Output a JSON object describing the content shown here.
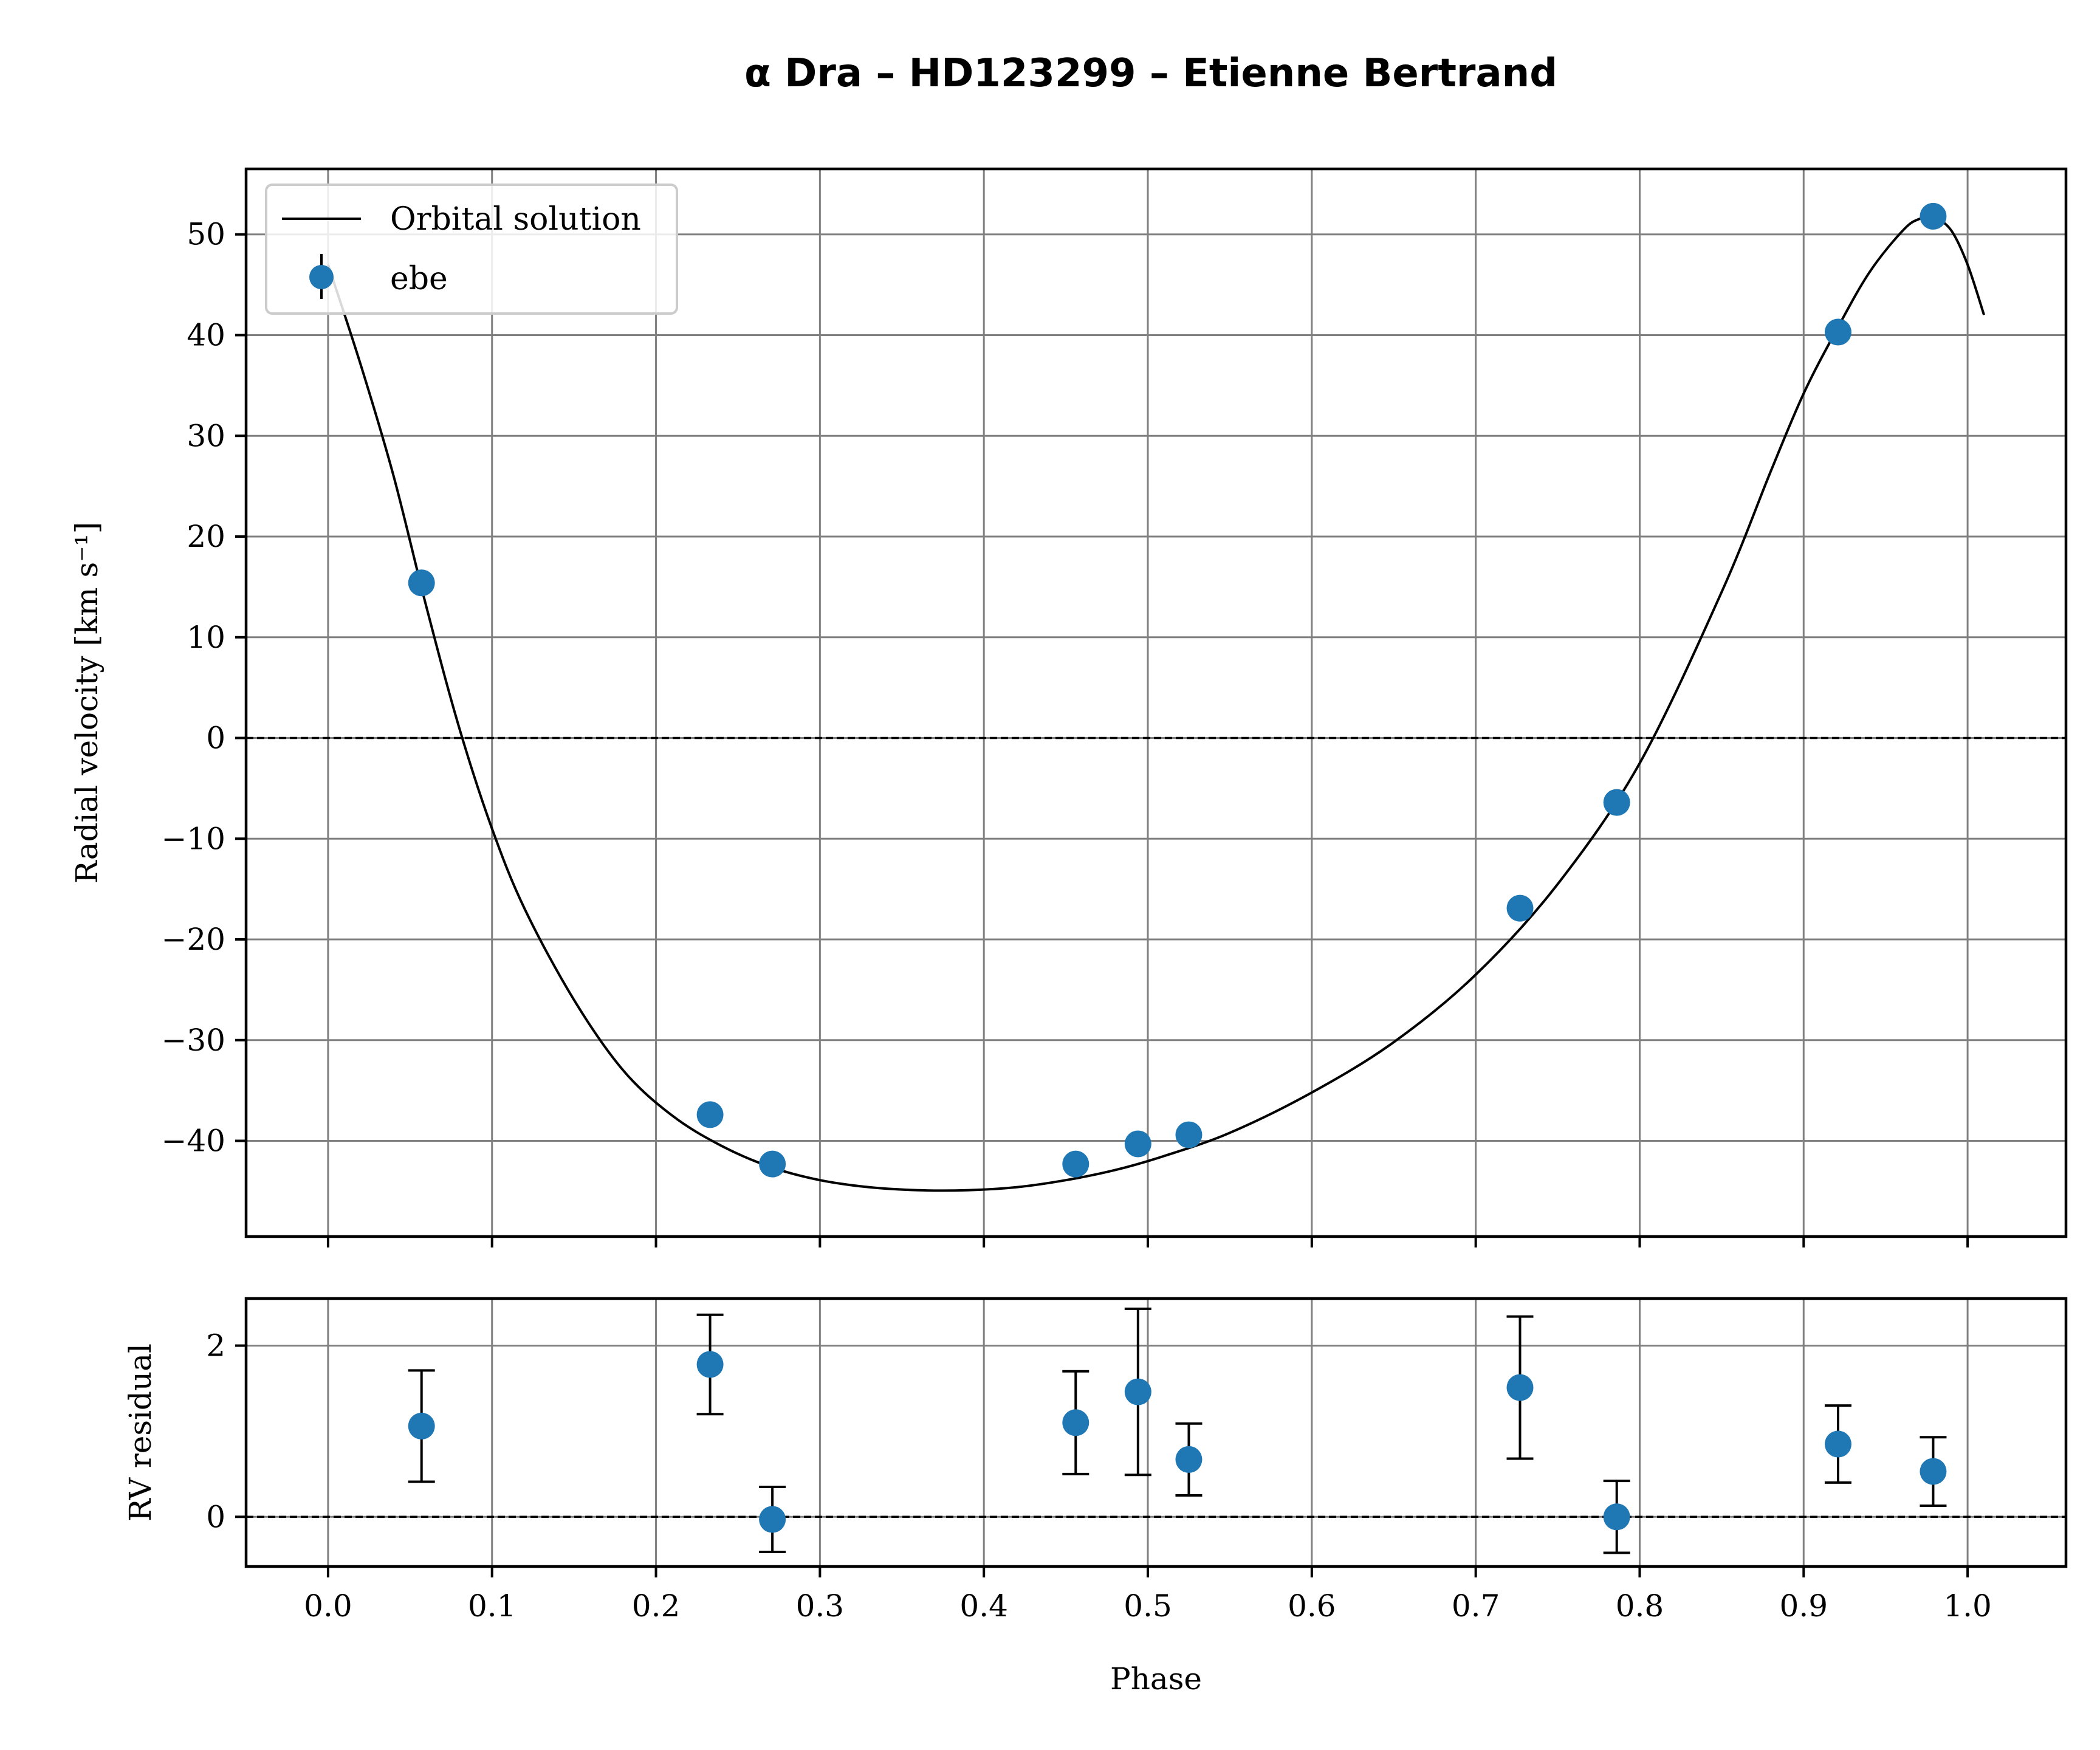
{
  "chart_data": [
    {
      "type": "scatter",
      "title": "α Dra – HD123299 – Etienne Bertrand",
      "xlabel": "",
      "ylabel": "Radial velocity [km s⁻¹]",
      "xlim": [
        -0.05,
        1.06
      ],
      "ylim": [
        -49.5,
        56.5
      ],
      "yticks": [
        -40,
        -30,
        -20,
        -10,
        0,
        10,
        20,
        30,
        40,
        50
      ],
      "grid": true,
      "legend": {
        "placement": "top-left",
        "entries": [
          "Orbital solution",
          "ebe"
        ]
      },
      "reference_line": 0,
      "series": [
        {
          "name": "Orbital solution",
          "kind": "line",
          "x": [
            0.0,
            0.02,
            0.04,
            0.06,
            0.08,
            0.1,
            0.12,
            0.15,
            0.18,
            0.21,
            0.24,
            0.27,
            0.3,
            0.33,
            0.36,
            0.39,
            0.42,
            0.45,
            0.48,
            0.51,
            0.55,
            0.6,
            0.65,
            0.7,
            0.75,
            0.8,
            0.85,
            0.88,
            0.9,
            0.92,
            0.94,
            0.96,
            0.97,
            0.98,
            0.99,
            1.0,
            1.01
          ],
          "y": [
            47,
            37,
            26,
            13,
            1,
            -9,
            -17,
            -26,
            -33,
            -37.5,
            -40.5,
            -42.6,
            -43.9,
            -44.6,
            -44.9,
            -44.9,
            -44.6,
            -43.9,
            -42.9,
            -41.5,
            -39.2,
            -35.2,
            -30.2,
            -23.5,
            -14.5,
            -2.5,
            14.5,
            26.5,
            34.2,
            40.5,
            46.2,
            50.3,
            51.5,
            51.6,
            50.4,
            47.0,
            42.0
          ]
        },
        {
          "name": "ebe",
          "kind": "points",
          "x": [
            0.057,
            0.233,
            0.271,
            0.456,
            0.494,
            0.525,
            0.727,
            0.786,
            0.921,
            0.979
          ],
          "y": [
            15.4,
            -37.4,
            -42.3,
            -42.3,
            -40.3,
            -39.4,
            -16.9,
            -6.4,
            40.3,
            51.8
          ]
        }
      ]
    },
    {
      "type": "scatter",
      "title": "",
      "xlabel": "Phase",
      "ylabel": "RV residual",
      "xlim": [
        -0.05,
        1.06
      ],
      "ylim": [
        -0.58,
        2.55
      ],
      "xticks": [
        "0.0",
        "0.1",
        "0.2",
        "0.3",
        "0.4",
        "0.5",
        "0.6",
        "0.7",
        "0.8",
        "0.9",
        "1.0"
      ],
      "yticks": [
        0,
        2
      ],
      "grid": true,
      "reference_line": 0,
      "series": [
        {
          "kind": "errorbar",
          "x": [
            0.057,
            0.233,
            0.271,
            0.456,
            0.494,
            0.525,
            0.727,
            0.786,
            0.921,
            0.979
          ],
          "y": [
            1.06,
            1.78,
            -0.03,
            1.1,
            1.46,
            0.67,
            1.51,
            0.0,
            0.85,
            0.53
          ],
          "yerr": [
            0.65,
            0.58,
            0.38,
            0.6,
            0.97,
            0.42,
            0.83,
            0.42,
            0.45,
            0.4
          ]
        }
      ]
    }
  ],
  "colors": {
    "marker": "#1f77b4",
    "line": "#000000",
    "grid": "#808080"
  }
}
